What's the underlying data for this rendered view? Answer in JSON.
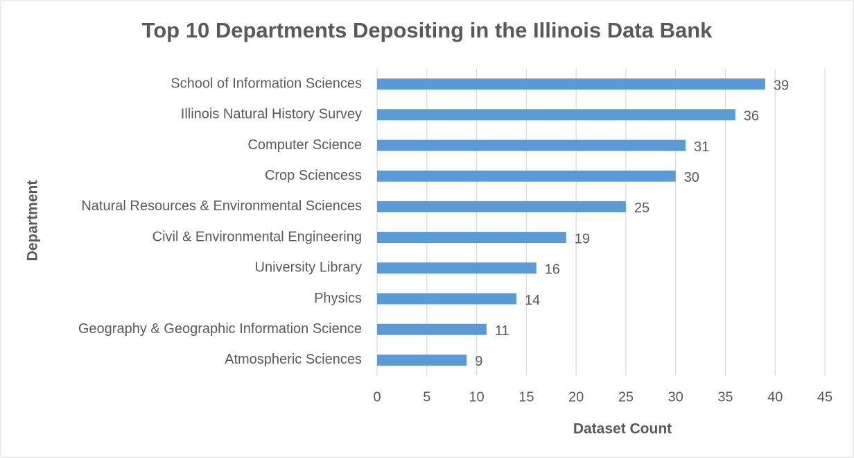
{
  "chart_data": {
    "type": "bar",
    "orientation": "horizontal",
    "title": "Top 10 Departments Depositing in the Illinois Data Bank",
    "x_label": "Dataset Count",
    "y_label": "Department",
    "categories": [
      "School of Information Sciences",
      "Illinois Natural History Survey",
      "Computer Science",
      "Crop Sciencess",
      "Natural Resources & Environmental Sciences",
      "Civil & Environmental Engineering",
      "University Library",
      "Physics",
      "Geography & Geographic Information Science",
      "Atmospheric Sciences"
    ],
    "values": [
      39,
      36,
      31,
      30,
      25,
      19,
      16,
      14,
      11,
      9
    ],
    "color": "#5b9bd5",
    "xlim": [
      0,
      45
    ],
    "xticks": [
      0,
      5,
      10,
      15,
      20,
      25,
      30,
      35,
      40,
      45
    ],
    "grid": true
  }
}
